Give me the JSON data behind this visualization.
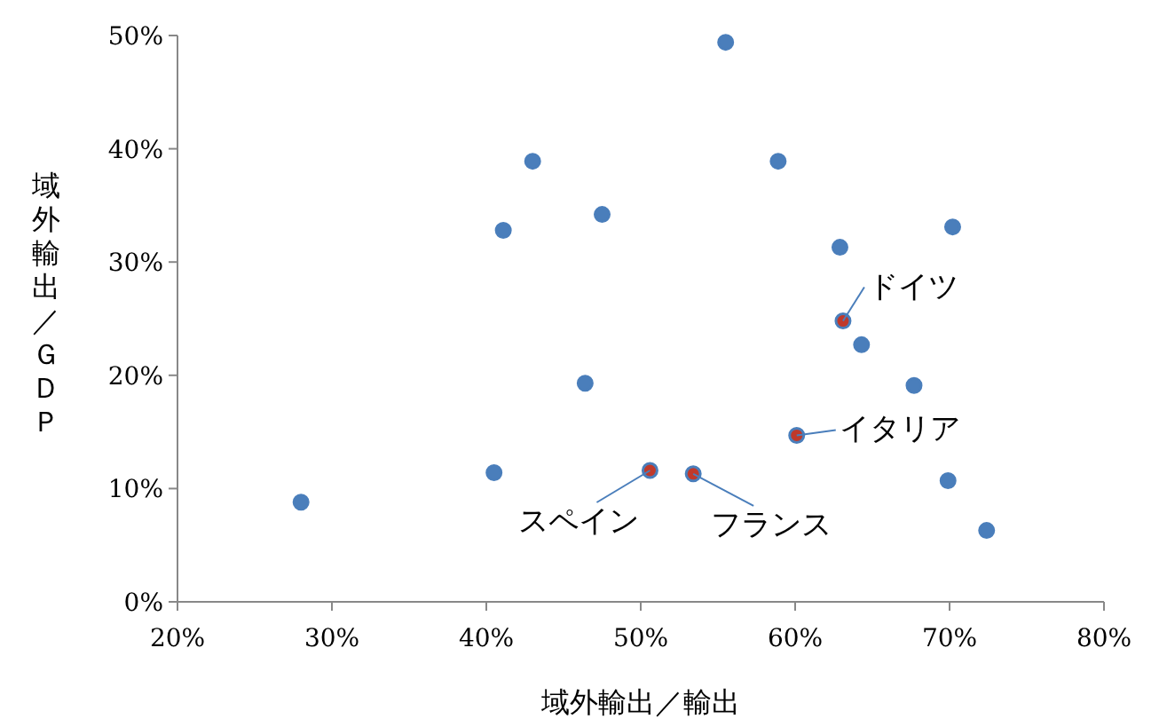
{
  "chart_data": {
    "type": "scatter",
    "xlabel": "域外輸出／輸出",
    "ylabel": "域外輸出／ＧＤＰ",
    "x": [
      28.0,
      40.5,
      41.1,
      43.0,
      46.4,
      47.5,
      50.6,
      53.4,
      55.5,
      58.9,
      60.1,
      62.9,
      63.1,
      64.3,
      67.7,
      70.2,
      69.9,
      72.4
    ],
    "series": [
      {
        "values": [
          8.8,
          11.4,
          32.8,
          38.9,
          19.3,
          34.2,
          11.6,
          11.3,
          49.4,
          38.9,
          14.7,
          31.3,
          24.8,
          22.7,
          19.1,
          33.1,
          10.7,
          6.3
        ],
        "colors": [
          "#4a7ebb",
          "#4a7ebb",
          "#4a7ebb",
          "#4a7ebb",
          "#4a7ebb",
          "#4a7ebb",
          "#c0392b",
          "#c0392b",
          "#4a7ebb",
          "#4a7ebb",
          "#c0392b",
          "#4a7ebb",
          "#c0392b",
          "#4a7ebb",
          "#4a7ebb",
          "#4a7ebb",
          "#4a7ebb",
          "#4a7ebb"
        ]
      }
    ],
    "annotations": [
      {
        "text": "ドイツ",
        "x": 63.1,
        "y": 24.8
      },
      {
        "text": "イタリア",
        "x": 60.1,
        "y": 14.7
      },
      {
        "text": "スペイン",
        "x": 50.6,
        "y": 11.6
      },
      {
        "text": "フランス",
        "x": 53.4,
        "y": 11.3
      }
    ],
    "xlim": [
      20,
      80
    ],
    "ylim": [
      0,
      50
    ],
    "xticks": [
      {
        "value": 20,
        "label": "20%"
      },
      {
        "value": 30,
        "label": "30%"
      },
      {
        "value": 40,
        "label": "40%"
      },
      {
        "value": 50,
        "label": "50%"
      },
      {
        "value": 60,
        "label": "60%"
      },
      {
        "value": 70,
        "label": "70%"
      },
      {
        "value": 80,
        "label": "80%"
      }
    ],
    "yticks": [
      {
        "value": 0,
        "label": "0%"
      },
      {
        "value": 10,
        "label": "10%"
      },
      {
        "value": 20,
        "label": "20%"
      },
      {
        "value": 30,
        "label": "30%"
      },
      {
        "value": 40,
        "label": "40%"
      },
      {
        "value": 50,
        "label": "50%"
      }
    ],
    "grid": false,
    "marker": "circle"
  }
}
